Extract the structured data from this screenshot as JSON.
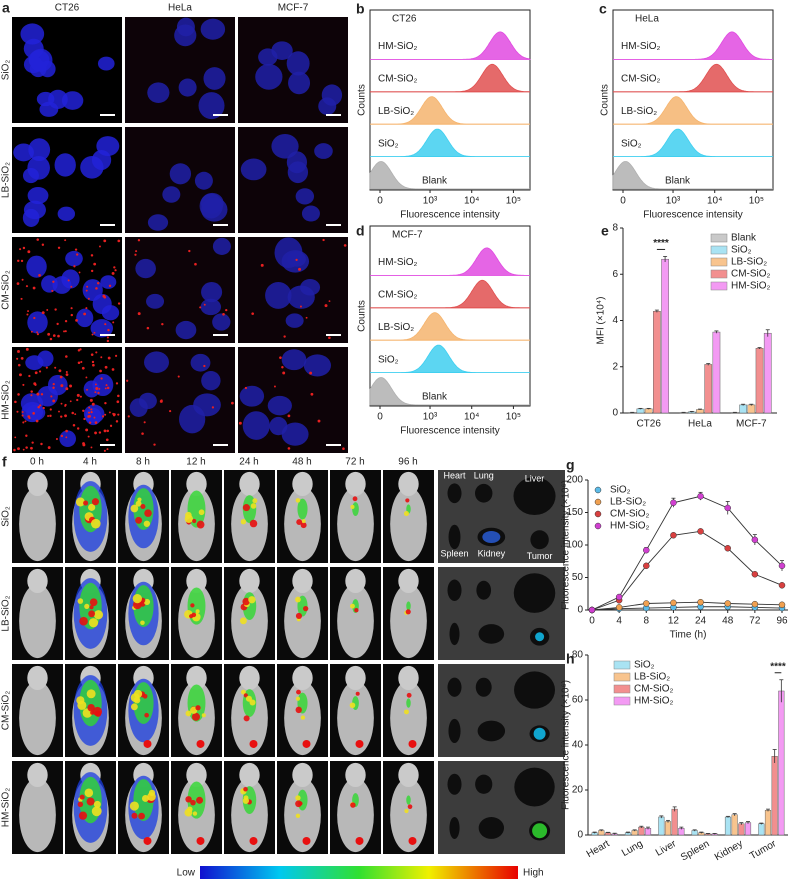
{
  "panel_a": {
    "letter": "a",
    "columns": [
      "CT26",
      "HeLa",
      "MCF-7"
    ],
    "rows": [
      "SiO₂",
      "LB-SiO₂",
      "CM-SiO₂",
      "HM-SiO₂"
    ]
  },
  "panel_f": {
    "letter": "f",
    "times": [
      "0 h",
      "4 h",
      "8 h",
      "12 h",
      "24 h",
      "48 h",
      "72 h",
      "96 h"
    ],
    "rows": [
      "SiO₂",
      "LB-SiO₂",
      "CM-SiO₂",
      "HM-SiO₂"
    ],
    "organs": [
      "Heart",
      "Lung",
      "Liver",
      "Spleen",
      "Kidney",
      "Tumor"
    ],
    "colorbar": {
      "low": "Low",
      "high": "High"
    }
  },
  "chart_data": [
    {
      "type": "flow",
      "panel": "b",
      "title": "CT26",
      "xlabel": "Fluorescence intensity",
      "ylabel": "Counts",
      "xscale": "biexponential",
      "xlim": [
        -200,
        250000
      ],
      "xticks": [
        0,
        {
          "value": 1000,
          "label": "10³"
        },
        {
          "value": 10000,
          "label": "10⁴"
        },
        {
          "value": 100000,
          "label": "10⁵"
        }
      ],
      "categories": [
        "HM-SiO₂",
        "CM-SiO₂",
        "LB-SiO₂",
        "SiO₂",
        "Blank"
      ],
      "values": [
        48000,
        31000,
        1100,
        1500,
        20
      ],
      "colors": [
        "#e04ae0",
        "#e05050",
        "#f5b46e",
        "#3fcff0",
        "#b0b0b0"
      ]
    },
    {
      "type": "flow",
      "panel": "c",
      "title": "HeLa",
      "xlabel": "Fluorescence intensity",
      "ylabel": "Counts",
      "xscale": "biexponential",
      "xlim": [
        -200,
        250000
      ],
      "xticks": [
        0,
        {
          "value": 1000,
          "label": "10³"
        },
        {
          "value": 10000,
          "label": "10⁴"
        },
        {
          "value": 100000,
          "label": "10⁵"
        }
      ],
      "categories": [
        "HM-SiO₂",
        "CM-SiO₂",
        "LB-SiO₂",
        "SiO₂",
        "Blank"
      ],
      "values": [
        26000,
        11000,
        1200,
        1300,
        50
      ],
      "colors": [
        "#e04ae0",
        "#e05050",
        "#f5b46e",
        "#3fcff0",
        "#b0b0b0"
      ]
    },
    {
      "type": "flow",
      "panel": "d",
      "title": "MCF-7",
      "xlabel": "Fluorescence intensity",
      "ylabel": "Counts",
      "xscale": "biexponential",
      "xlim": [
        -200,
        250000
      ],
      "xticks": [
        0,
        {
          "value": 1000,
          "label": "10³"
        },
        {
          "value": 10000,
          "label": "10⁴"
        },
        {
          "value": 100000,
          "label": "10⁵"
        }
      ],
      "categories": [
        "HM-SiO₂",
        "CM-SiO₂",
        "LB-SiO₂",
        "SiO₂",
        "Blank"
      ],
      "values": [
        23000,
        18000,
        1300,
        1600,
        20
      ],
      "colors": [
        "#e04ae0",
        "#e05050",
        "#f5b46e",
        "#3fcff0",
        "#b0b0b0"
      ]
    },
    {
      "type": "bar",
      "panel": "e",
      "ylabel": "MFI (×10⁴)",
      "categories": [
        "CT26",
        "HeLa",
        "MCF-7"
      ],
      "ylim": [
        0,
        8
      ],
      "yticks": [
        0,
        2,
        4,
        6,
        8
      ],
      "legend": "upper right",
      "annotation": "****",
      "series": [
        {
          "name": "Blank",
          "color": "#c9c9c9",
          "values": [
            0.02,
            0.02,
            0.02
          ],
          "errors": [
            0.01,
            0.01,
            0.01
          ]
        },
        {
          "name": "SiO₂",
          "color": "#a9e3f3",
          "values": [
            0.18,
            0.05,
            0.35
          ],
          "errors": [
            0.02,
            0.02,
            0.03
          ]
        },
        {
          "name": "LB-SiO₂",
          "color": "#f8c48e",
          "values": [
            0.18,
            0.15,
            0.35
          ],
          "errors": [
            0.02,
            0.02,
            0.03
          ]
        },
        {
          "name": "CM-SiO₂",
          "color": "#f28f8f",
          "values": [
            4.4,
            2.1,
            2.8
          ],
          "errors": [
            0.05,
            0.04,
            0.03
          ]
        },
        {
          "name": "HM-SiO₂",
          "color": "#f39af3",
          "values": [
            6.65,
            3.5,
            3.45
          ],
          "errors": [
            0.12,
            0.05,
            0.15
          ]
        }
      ]
    },
    {
      "type": "line",
      "panel": "g",
      "ylabel": "Fluorescence intensity (×10⁶)",
      "xlabel": "Time (h)",
      "categories": [
        "0",
        "4",
        "8",
        "12",
        "24",
        "48",
        "72",
        "96"
      ],
      "ylim": [
        0,
        200
      ],
      "yticks": [
        0,
        50,
        100,
        150,
        200
      ],
      "legend": "upper left",
      "line_color": "#333333",
      "series": [
        {
          "name": "SiO₂",
          "color": "#5bbbe8",
          "values": [
            0,
            2,
            3,
            4,
            5,
            5,
            4,
            3
          ],
          "errors": [
            0,
            1,
            1,
            1,
            1,
            1,
            1,
            1
          ]
        },
        {
          "name": "LB-SiO₂",
          "color": "#f0a050",
          "values": [
            0,
            4,
            10,
            11,
            12,
            10,
            9,
            8
          ],
          "errors": [
            0,
            1,
            1,
            1,
            1,
            1,
            1,
            1
          ]
        },
        {
          "name": "CM-SiO₂",
          "color": "#d84040",
          "values": [
            0,
            15,
            68,
            115,
            121,
            95,
            55,
            38
          ],
          "errors": [
            0,
            2,
            2,
            2,
            3,
            2,
            2,
            2
          ]
        },
        {
          "name": "HM-SiO₂",
          "color": "#d040d0",
          "values": [
            0,
            20,
            92,
            165,
            175,
            157,
            108,
            68
          ],
          "errors": [
            0,
            3,
            4,
            7,
            6,
            10,
            8,
            8
          ]
        }
      ]
    },
    {
      "type": "bar",
      "panel": "h",
      "ylabel": "Fluorescence intensity (×10⁶)",
      "categories": [
        "Heart",
        "Lung",
        "Liver",
        "Spleen",
        "Kidney",
        "Tumor"
      ],
      "xtick_rotation": -30,
      "ylim": [
        0,
        80
      ],
      "yticks": [
        0,
        20,
        40,
        60,
        80
      ],
      "legend": "upper left",
      "annotation": "****",
      "series": [
        {
          "name": "SiO₂",
          "color": "#a9e3f3",
          "values": [
            1,
            1,
            8,
            2,
            8,
            5
          ],
          "errors": [
            0.3,
            0.3,
            0.5,
            0.3,
            0.3,
            0.3
          ]
        },
        {
          "name": "LB-SiO₂",
          "color": "#f8c48e",
          "values": [
            2,
            2,
            6,
            1,
            9,
            11
          ],
          "errors": [
            0.3,
            0.3,
            0.5,
            0.3,
            0.5,
            0.5
          ]
        },
        {
          "name": "CM-SiO₂",
          "color": "#f28f8f",
          "values": [
            1,
            3.5,
            11.5,
            0.5,
            5,
            35
          ],
          "errors": [
            0.2,
            0.4,
            1,
            0.2,
            0.5,
            3
          ]
        },
        {
          "name": "HM-SiO₂",
          "color": "#f39af3",
          "values": [
            0.5,
            3,
            3,
            0.5,
            5.5,
            64
          ],
          "errors": [
            0.3,
            0.5,
            0.5,
            0.2,
            0.5,
            5
          ]
        }
      ]
    }
  ]
}
